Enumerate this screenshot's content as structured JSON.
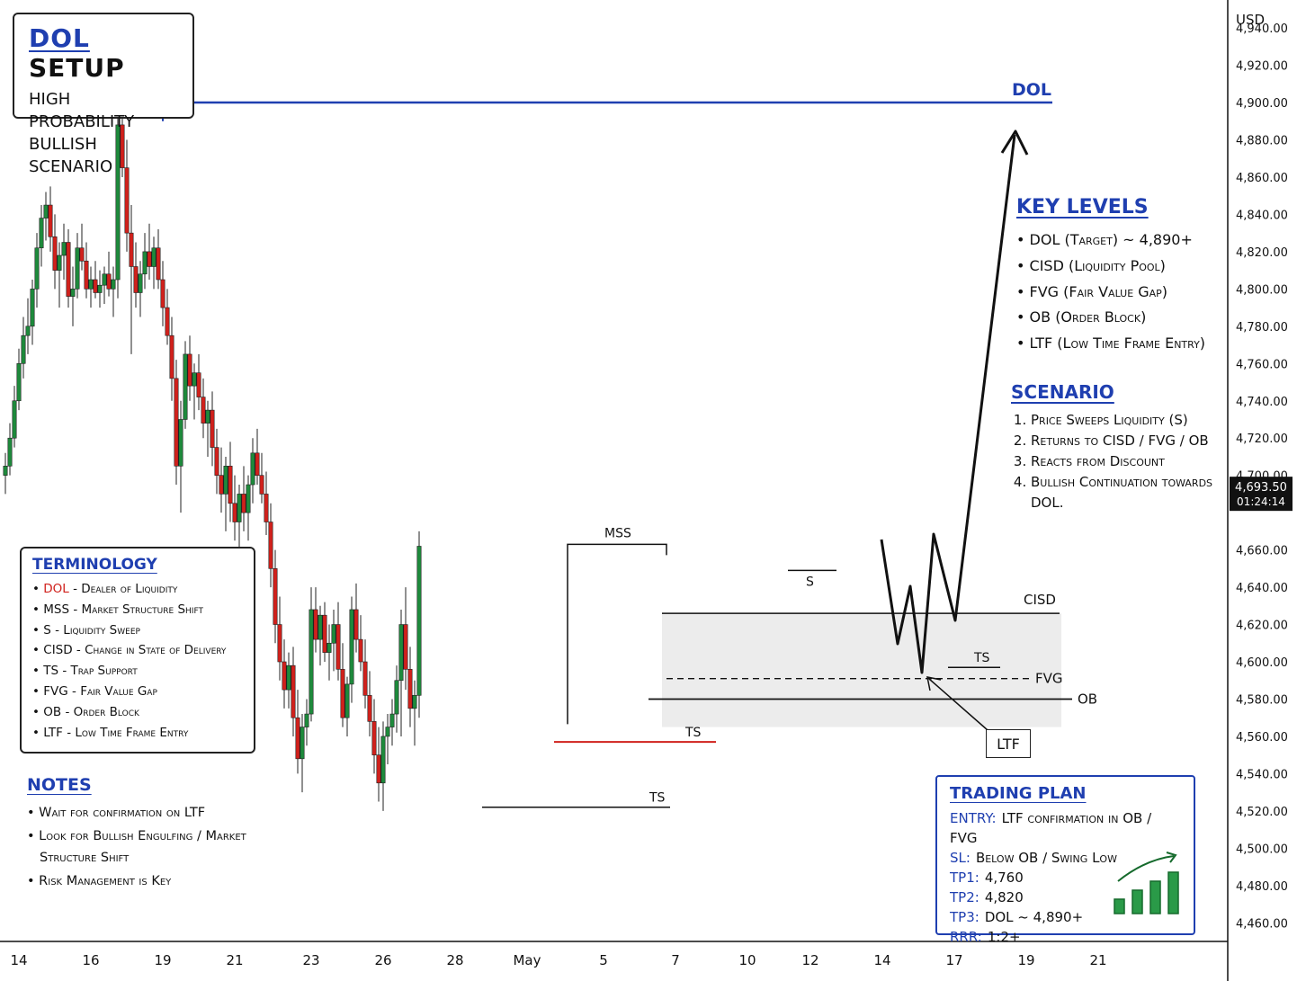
{
  "chart_data": {
    "type": "candlestick",
    "currency_label": "USD",
    "y_ticks": [
      4940,
      4920,
      4900,
      4880,
      4860,
      4840,
      4820,
      4800,
      4780,
      4760,
      4740,
      4720,
      4700,
      4660,
      4640,
      4620,
      4600,
      4580,
      4560,
      4540,
      4520,
      4500,
      4480,
      4460
    ],
    "y_tick_labels": [
      "4,940.00",
      "4,920.00",
      "4,900.00",
      "4,880.00",
      "4,860.00",
      "4,840.00",
      "4,820.00",
      "4,800.00",
      "4,780.00",
      "4,760.00",
      "4,740.00",
      "4,720.00",
      "4,700.00",
      "4,660.00",
      "4,640.00",
      "4,620.00",
      "4,600.00",
      "4,580.00",
      "4,560.00",
      "4,540.00",
      "4,520.00",
      "4,500.00",
      "4,480.00",
      "4,460.00"
    ],
    "ylim": [
      4450,
      4955
    ],
    "x_ticks": [
      {
        "label": "14",
        "i": 3
      },
      {
        "label": "16",
        "i": 19
      },
      {
        "label": "19",
        "i": 35
      },
      {
        "label": "21",
        "i": 51
      },
      {
        "label": "23",
        "i": 68
      },
      {
        "label": "26",
        "i": 84
      },
      {
        "label": "28",
        "i": 100
      },
      {
        "label": "May",
        "i": 116
      },
      {
        "label": "5",
        "i": 133
      },
      {
        "label": "7",
        "i": 149
      },
      {
        "label": "10",
        "i": 165
      },
      {
        "label": "12",
        "i": 179
      },
      {
        "label": "14",
        "i": 195
      },
      {
        "label": "17",
        "i": 211
      },
      {
        "label": "19",
        "i": 227
      },
      {
        "label": "21",
        "i": 243
      }
    ],
    "x_range": [
      0,
      260
    ],
    "current_price": {
      "label": "4,693.50",
      "timer": "01:24:14",
      "value": 4693.5
    },
    "candles": [
      [
        4700,
        4712,
        4690,
        4705
      ],
      [
        4705,
        4728,
        4700,
        4720
      ],
      [
        4720,
        4748,
        4715,
        4740
      ],
      [
        4740,
        4768,
        4735,
        4760
      ],
      [
        4760,
        4785,
        4752,
        4775
      ],
      [
        4775,
        4795,
        4765,
        4780
      ],
      [
        4780,
        4805,
        4770,
        4800
      ],
      [
        4800,
        4830,
        4790,
        4822
      ],
      [
        4822,
        4845,
        4812,
        4838
      ],
      [
        4838,
        4852,
        4826,
        4845
      ],
      [
        4845,
        4855,
        4820,
        4828
      ],
      [
        4828,
        4840,
        4800,
        4810
      ],
      [
        4810,
        4825,
        4790,
        4818
      ],
      [
        4818,
        4835,
        4805,
        4825
      ],
      [
        4825,
        4832,
        4790,
        4796
      ],
      [
        4796,
        4812,
        4780,
        4800
      ],
      [
        4800,
        4830,
        4795,
        4822
      ],
      [
        4822,
        4835,
        4810,
        4815
      ],
      [
        4815,
        4825,
        4795,
        4800
      ],
      [
        4800,
        4812,
        4790,
        4805
      ],
      [
        4805,
        4815,
        4795,
        4798
      ],
      [
        4798,
        4810,
        4790,
        4802
      ],
      [
        4802,
        4812,
        4792,
        4808
      ],
      [
        4808,
        4820,
        4796,
        4800
      ],
      [
        4800,
        4812,
        4785,
        4805
      ],
      [
        4805,
        4895,
        4795,
        4888
      ],
      [
        4888,
        4898,
        4860,
        4865
      ],
      [
        4865,
        4880,
        4820,
        4830
      ],
      [
        4830,
        4845,
        4765,
        4812
      ],
      [
        4812,
        4825,
        4790,
        4798
      ],
      [
        4798,
        4815,
        4785,
        4808
      ],
      [
        4808,
        4830,
        4800,
        4820
      ],
      [
        4820,
        4835,
        4805,
        4812
      ],
      [
        4812,
        4828,
        4800,
        4822
      ],
      [
        4822,
        4832,
        4800,
        4805
      ],
      [
        4805,
        4815,
        4780,
        4790
      ],
      [
        4790,
        4800,
        4770,
        4775
      ],
      [
        4775,
        4785,
        4740,
        4752
      ],
      [
        4752,
        4762,
        4695,
        4705
      ],
      [
        4705,
        4740,
        4680,
        4730
      ],
      [
        4730,
        4772,
        4725,
        4765
      ],
      [
        4765,
        4775,
        4740,
        4748
      ],
      [
        4748,
        4760,
        4730,
        4755
      ],
      [
        4755,
        4765,
        4735,
        4742
      ],
      [
        4742,
        4752,
        4720,
        4728
      ],
      [
        4728,
        4740,
        4710,
        4735
      ],
      [
        4735,
        4745,
        4705,
        4715
      ],
      [
        4715,
        4725,
        4690,
        4700
      ],
      [
        4700,
        4715,
        4680,
        4690
      ],
      [
        4690,
        4710,
        4670,
        4705
      ],
      [
        4705,
        4718,
        4675,
        4685
      ],
      [
        4685,
        4700,
        4665,
        4675
      ],
      [
        4675,
        4695,
        4660,
        4690
      ],
      [
        4690,
        4705,
        4670,
        4680
      ],
      [
        4680,
        4700,
        4665,
        4695
      ],
      [
        4695,
        4720,
        4685,
        4712
      ],
      [
        4712,
        4725,
        4695,
        4700
      ],
      [
        4700,
        4712,
        4685,
        4690
      ],
      [
        4690,
        4702,
        4668,
        4675
      ],
      [
        4675,
        4685,
        4640,
        4650
      ],
      [
        4650,
        4660,
        4610,
        4620
      ],
      [
        4620,
        4635,
        4590,
        4600
      ],
      [
        4600,
        4612,
        4575,
        4585
      ],
      [
        4585,
        4605,
        4575,
        4598
      ],
      [
        4598,
        4608,
        4560,
        4570
      ],
      [
        4570,
        4585,
        4540,
        4548
      ],
      [
        4548,
        4572,
        4530,
        4565
      ],
      [
        4565,
        4580,
        4555,
        4572
      ],
      [
        4572,
        4640,
        4568,
        4628
      ],
      [
        4628,
        4640,
        4605,
        4612
      ],
      [
        4612,
        4630,
        4598,
        4625
      ],
      [
        4625,
        4632,
        4600,
        4605
      ],
      [
        4605,
        4620,
        4590,
        4610
      ],
      [
        4610,
        4628,
        4595,
        4620
      ],
      [
        4620,
        4632,
        4590,
        4596
      ],
      [
        4596,
        4610,
        4565,
        4570
      ],
      [
        4570,
        4592,
        4560,
        4588
      ],
      [
        4588,
        4635,
        4578,
        4628
      ],
      [
        4628,
        4642,
        4605,
        4612
      ],
      [
        4612,
        4625,
        4595,
        4600
      ],
      [
        4600,
        4612,
        4575,
        4582
      ],
      [
        4582,
        4595,
        4560,
        4568
      ],
      [
        4568,
        4580,
        4540,
        4550
      ],
      [
        4550,
        4565,
        4525,
        4535
      ],
      [
        4535,
        4568,
        4520,
        4560
      ],
      [
        4560,
        4572,
        4545,
        4565
      ],
      [
        4565,
        4580,
        4555,
        4572
      ],
      [
        4572,
        4598,
        4562,
        4590
      ],
      [
        4590,
        4628,
        4560,
        4620
      ],
      [
        4620,
        4640,
        4585,
        4596
      ],
      [
        4596,
        4608,
        4565,
        4575
      ],
      [
        4575,
        4590,
        4555,
        4582
      ],
      [
        4582,
        4670,
        4570,
        4662
      ]
    ],
    "levels": {
      "dol": {
        "label": "DOL",
        "value": 4900
      },
      "cisd": {
        "label": "CISD",
        "value": 4626
      },
      "fvg": {
        "label": "FVG",
        "value": 4591
      },
      "ob": {
        "label": "OB",
        "value": 4580
      },
      "zone_bottom": 4565,
      "mss": {
        "label": "MSS",
        "value": 4663
      },
      "ts_red": {
        "label": "TS",
        "value": 4557
      },
      "ts_low": {
        "label": "TS",
        "value": 4522
      },
      "s_sweep": {
        "label": "S",
        "value": 4649
      },
      "ts_proj": {
        "label": "TS",
        "value": 4597
      },
      "ltf": {
        "label": "LTF",
        "value": 4580
      }
    }
  },
  "title_box": {
    "line1_blue": "DOL",
    "line1_rest": " SETUP",
    "line2": "HIGH PROBABILITY",
    "line3": "BULLISH SCENARIO"
  },
  "terminology": {
    "title": "TERMINOLOGY",
    "items": [
      {
        "key": "DOL",
        "desc": " - Dealer of Liquidity"
      },
      {
        "key": "MSS",
        "desc": " - Market Structure Shift"
      },
      {
        "key": "S",
        "desc": "   - Liquidity Sweep"
      },
      {
        "key": "CISD",
        "desc": " - Change in State of Delivery"
      },
      {
        "key": "TS",
        "desc": "  - Trap Support"
      },
      {
        "key": "FVG",
        "desc": " - Fair Value Gap"
      },
      {
        "key": "OB",
        "desc": "  - Order Block"
      },
      {
        "key": "LTF",
        "desc": " - Low Time Frame Entry"
      }
    ]
  },
  "notes": {
    "title": "NOTES",
    "items": [
      "Wait for confirmation on LTF",
      "Look for Bullish Engulfing / Market Structure Shift",
      "Risk Management is Key"
    ]
  },
  "key_levels": {
    "title": "KEY LEVELS",
    "items": [
      "DOL (Target) ~ 4,890+",
      "CISD (Liquidity Pool)",
      "FVG (Fair Value Gap)",
      "OB (Order Block)",
      "LTF (Low Time Frame Entry)"
    ]
  },
  "scenario": {
    "title": "SCENARIO",
    "items": [
      "Price Sweeps Liquidity (S)",
      "Returns to CISD / FVG / OB",
      "Reacts from Discount",
      "Bullish Continuation towards DOL."
    ]
  },
  "trading_plan": {
    "title": "TRADING PLAN",
    "rows": [
      {
        "k": "ENTRY:",
        "v": "LTF confirmation in OB / FVG"
      },
      {
        "k": "SL:",
        "v": "Below OB / Swing Low"
      },
      {
        "k": "TP1:",
        "v": "4,760"
      },
      {
        "k": "TP2:",
        "v": "4,820"
      },
      {
        "k": "TP3:",
        "v": "DOL ~ 4,890+"
      },
      {
        "k": "RRR:",
        "v": "1:2+"
      }
    ]
  },
  "colors": {
    "bull": "#1e8a3c",
    "bear": "#d0211c",
    "accent": "#1f3fb0",
    "ink": "#111111",
    "zone": "#ececec"
  }
}
